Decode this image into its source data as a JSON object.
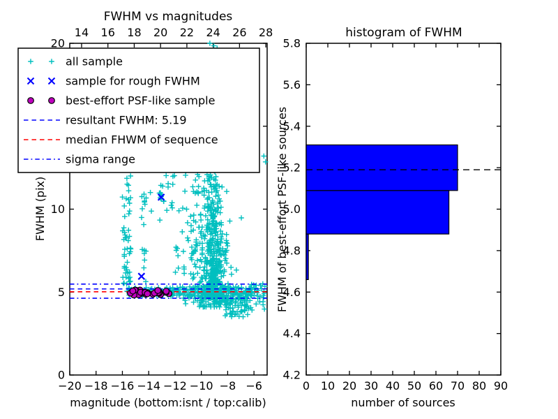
{
  "window": {
    "background": "#ffffff"
  },
  "colors": {
    "all_sample": "#00bfbf",
    "rough_sample": "#0000ff",
    "psf_sample": "#bf00bf",
    "resultant_line": "#0000ff",
    "median_line": "#ff0000",
    "sigma_line": "#0000ff",
    "hist_bar": "#0000ff",
    "hist_dashed": "#000000",
    "axes": "#000000"
  },
  "chart_data": [
    {
      "type": "scatter",
      "title": "FWHM vs magnitudes",
      "xlabel": "magnitude (bottom:isnt / top:calib)",
      "ylabel": "FWHM (pix)",
      "xlim": [
        -20,
        -5
      ],
      "ylim": [
        0,
        20
      ],
      "x_ticks_bottom_isnt": [
        -20,
        -18,
        -16,
        -14,
        -12,
        -10,
        -8,
        -6
      ],
      "x_ticks_top_calib": [
        14,
        16,
        18,
        20,
        22,
        24,
        26,
        28
      ],
      "calib_minus_isnt_offset": 33.1,
      "y_ticks": [
        0,
        5,
        10,
        15,
        20
      ],
      "y_tick_decimals": 0,
      "grid": false,
      "legend_position": "upper-left",
      "legend": [
        {
          "label": "all sample",
          "marker": "plus",
          "color": "#00bfbf"
        },
        {
          "label": "sample for rough FWHM",
          "marker": "x",
          "color": "#0000ff"
        },
        {
          "label": "best-effort PSF-like sample",
          "marker": "circle",
          "color": "#bf00bf"
        },
        {
          "label": "resultant FWHM: 5.19",
          "marker": "dashed",
          "color": "#0000ff"
        },
        {
          "label": "median FHWM of sequence",
          "marker": "dashed",
          "color": "#ff0000"
        },
        {
          "label": "sigma range",
          "marker": "dashdot",
          "color": "#0000ff"
        }
      ],
      "lines": {
        "resultant_fwhm": {
          "value": 5.19,
          "style": "dashed",
          "color": "#0000ff"
        },
        "median_fwhm": {
          "value": 5.02,
          "style": "dashed",
          "color": "#ff0000"
        },
        "sigma_range": {
          "low": 4.63,
          "high": 5.48,
          "style": "dashdot",
          "color": "#0000ff"
        }
      },
      "series": {
        "all_sample": {
          "marker": "plus",
          "color": "#00bfbf",
          "seed": 20240601,
          "clusters": [
            {
              "id": "band-left",
              "xmin": -15.7,
              "xmax": -12.35,
              "ymin": 4.78,
              "ymax": 5.28,
              "n": 50
            },
            {
              "id": "band-main",
              "xmin": -12.4,
              "xmax": -6.1,
              "ymin": 4.72,
              "ymax": 5.32,
              "n": 170
            },
            {
              "id": "band-low",
              "xmin": -11.5,
              "xmax": -6.3,
              "ymin": 4.45,
              "ymax": 4.78,
              "n": 45
            },
            {
              "id": "column-15.7",
              "xmin": -16.0,
              "xmax": -15.35,
              "ymin": 5.1,
              "ymax": 12.2,
              "n": 50,
              "ypow": 1.3
            },
            {
              "id": "column-14.3",
              "xmin": -14.55,
              "xmax": -14.15,
              "ymin": 5.6,
              "ymax": 11.5,
              "n": 16
            },
            {
              "id": "mid-high",
              "xmin": -13.9,
              "xmax": -12.4,
              "ymin": 9.2,
              "ymax": 12.5,
              "n": 14
            },
            {
              "id": "around-rough-x",
              "xmu": -13.05,
              "xsd": 0.12,
              "ymin": 10.35,
              "ymax": 11.05,
              "n": 9
            },
            {
              "id": "high-band",
              "xmin": -12.3,
              "xmax": -10.2,
              "ymin": 9.8,
              "ymax": 12.4,
              "n": 16
            },
            {
              "id": "column-10.7",
              "xmin": -11.15,
              "xmax": -10.35,
              "ymin": 5.3,
              "ymax": 10.3,
              "n": 24
            },
            {
              "id": "mid-col",
              "xmin": -12.0,
              "xmax": -11.2,
              "ymin": 5.2,
              "ymax": 8.8,
              "n": 10
            },
            {
              "id": "gap-fill",
              "xmin": -10.5,
              "xmax": -9.7,
              "ymin": 5.6,
              "ymax": 12.2,
              "n": 30,
              "ypow": 1.4
            },
            {
              "id": "plume-core",
              "xmu": -9.05,
              "xsd": 0.38,
              "ymin": 4.65,
              "ymax": 12.6,
              "n": 400,
              "ypow": 2.2
            },
            {
              "id": "plume-wide",
              "xmu": -8.85,
              "xsd": 0.85,
              "ymin": 4.1,
              "ymax": 9.5,
              "n": 130,
              "ypow": 1.8
            },
            {
              "id": "droop",
              "xmin": -8.3,
              "xmax": -6.4,
              "ymin": 3.5,
              "ymax": 4.7,
              "n": 55
            },
            {
              "id": "right-sparse",
              "xmin": -6.45,
              "xmax": -5.1,
              "ymin": 3.9,
              "ymax": 5.6,
              "n": 32
            }
          ],
          "points": [
            [
              -9.35,
              20.0
            ],
            [
              -9.05,
              19.85
            ],
            [
              -8.8,
              19.7
            ],
            [
              -5.25,
              13.2
            ],
            [
              -5.12,
              12.85
            ]
          ]
        },
        "rough_fwhm_sample": {
          "marker": "x",
          "color": "#0000ff",
          "points": [
            [
              -13.05,
              10.72
            ],
            [
              -14.55,
              5.95
            ]
          ]
        },
        "psf_like_sample": {
          "marker": "circle",
          "color": "#bf00bf",
          "edge_color": "#000000",
          "cluster": {
            "xmin": -15.55,
            "xmax": -12.45,
            "y_center": 4.97,
            "y_sigma": 0.09,
            "n": 30
          }
        }
      }
    },
    {
      "type": "bar-horizontal",
      "title": "histogram of FWHM",
      "xlabel": "number of sources",
      "ylabel": "FWHM of best-effort PSF-like sources",
      "xlim": [
        0,
        90
      ],
      "ylim": [
        4.2,
        5.8
      ],
      "x_ticks": [
        0,
        10,
        20,
        30,
        40,
        50,
        60,
        70,
        80,
        90
      ],
      "y_ticks": [
        4.2,
        4.4,
        4.6,
        4.8,
        5.0,
        5.2,
        5.4,
        5.6,
        5.8
      ],
      "y_tick_decimals": 1,
      "grid": false,
      "bar_color": "#0000ff",
      "bar_edge_color": "#000000",
      "bins": [
        {
          "fwhm_from": 4.66,
          "fwhm_to": 4.88,
          "count": 1
        },
        {
          "fwhm_from": 4.88,
          "fwhm_to": 5.09,
          "count": 66
        },
        {
          "fwhm_from": 5.09,
          "fwhm_to": 5.31,
          "count": 70
        }
      ],
      "dashed_line": {
        "value": 5.19,
        "style": "dashed",
        "color": "#000000"
      }
    }
  ]
}
